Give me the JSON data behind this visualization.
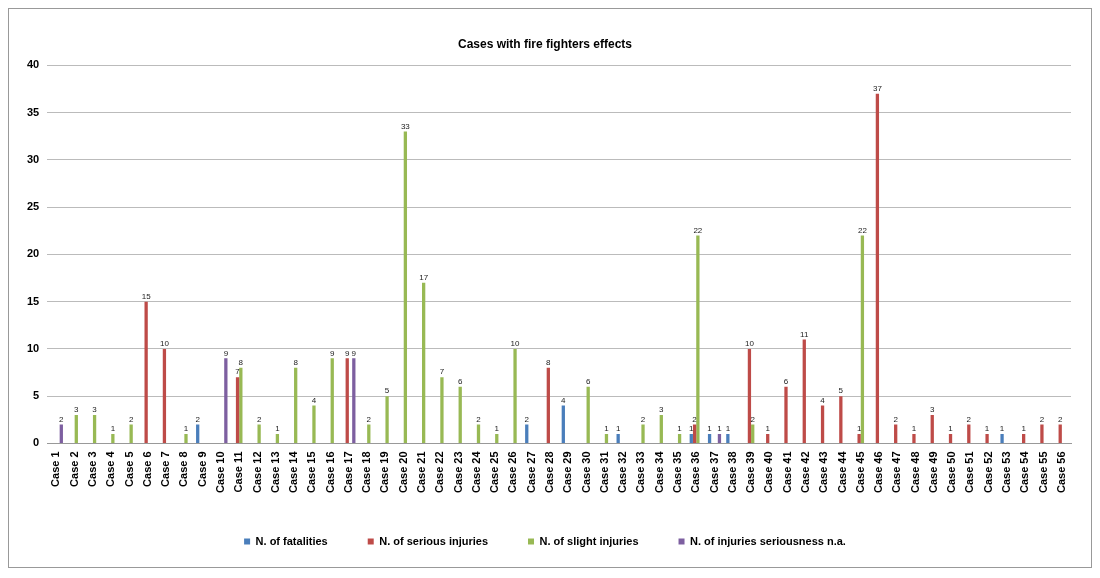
{
  "chart_data": {
    "type": "bar",
    "title": "Cases with fire fighters effects",
    "categories": [
      "Case 1",
      "Case 2",
      "Case 3",
      "Case 4",
      "Case 5",
      "Case 6",
      "Case 7",
      "Case 8",
      "Case 9",
      "Case 10",
      "Case 11",
      "Case 12",
      "Case 13",
      "Case 14",
      "Case 15",
      "Case 16",
      "Case 17",
      "Case 18",
      "Case 19",
      "Case 20",
      "Case 21",
      "Case 22",
      "Case 23",
      "Case 24",
      "Case 25",
      "Case 26",
      "Case 27",
      "Case 28",
      "Case 29",
      "Case 30",
      "Case 31",
      "Case 32",
      "Case 33",
      "Case 34",
      "Case 35",
      "Case 36",
      "Case 37",
      "Case 38",
      "Case 39",
      "Case 40",
      "Case 41",
      "Case 42",
      "Case 43",
      "Case 44",
      "Case 45",
      "Case 46",
      "Case 47",
      "Case 48",
      "Case 49",
      "Case 50",
      "Case 51",
      "Case 52",
      "Case 53",
      "Case 54",
      "Case 55",
      "Case 56"
    ],
    "series": [
      {
        "name": "N. of fatalities",
        "color": "#4a7ebb",
        "values": [
          null,
          null,
          null,
          null,
          null,
          null,
          null,
          null,
          2,
          null,
          null,
          null,
          null,
          null,
          null,
          null,
          null,
          null,
          null,
          null,
          null,
          null,
          null,
          null,
          null,
          null,
          2,
          null,
          4,
          null,
          null,
          1,
          null,
          null,
          null,
          1,
          1,
          1,
          null,
          null,
          null,
          null,
          null,
          null,
          null,
          null,
          null,
          null,
          null,
          null,
          null,
          null,
          1,
          null,
          null,
          null
        ]
      },
      {
        "name": "N. of serious injuries",
        "color": "#be4b48",
        "values": [
          null,
          null,
          null,
          null,
          null,
          15,
          10,
          null,
          null,
          null,
          7,
          null,
          null,
          null,
          null,
          null,
          9,
          null,
          null,
          null,
          null,
          null,
          null,
          null,
          null,
          null,
          null,
          8,
          null,
          null,
          null,
          null,
          null,
          null,
          null,
          2,
          null,
          null,
          10,
          1,
          6,
          11,
          4,
          5,
          1,
          37,
          2,
          1,
          3,
          1,
          2,
          1,
          null,
          1,
          2,
          2
        ]
      },
      {
        "name": "N. of slight injuries",
        "color": "#98b954",
        "values": [
          null,
          3,
          3,
          1,
          2,
          null,
          null,
          1,
          null,
          null,
          8,
          2,
          1,
          8,
          4,
          9,
          null,
          2,
          5,
          33,
          17,
          7,
          6,
          2,
          1,
          10,
          null,
          null,
          null,
          6,
          1,
          null,
          2,
          3,
          1,
          22,
          null,
          null,
          2,
          null,
          null,
          null,
          null,
          null,
          22,
          null,
          null,
          null,
          null,
          null,
          null,
          null,
          null,
          null,
          null,
          null
        ]
      },
      {
        "name": "N. of injuries seriousness n.a.",
        "color": "#7d5fa0",
        "values": [
          2,
          null,
          null,
          null,
          null,
          null,
          null,
          null,
          null,
          9,
          null,
          null,
          null,
          null,
          null,
          null,
          9,
          null,
          null,
          null,
          null,
          null,
          null,
          null,
          null,
          null,
          null,
          null,
          null,
          null,
          null,
          null,
          null,
          null,
          null,
          null,
          1,
          null,
          null,
          null,
          null,
          null,
          null,
          null,
          null,
          null,
          null,
          null,
          null,
          null,
          null,
          null,
          null,
          null,
          null,
          null
        ]
      }
    ],
    "ylim": [
      0,
      40
    ],
    "yticks": [
      0,
      5,
      10,
      15,
      20,
      25,
      30,
      35,
      40
    ],
    "grid": "y",
    "legend": "bottom",
    "data_labels": true
  }
}
